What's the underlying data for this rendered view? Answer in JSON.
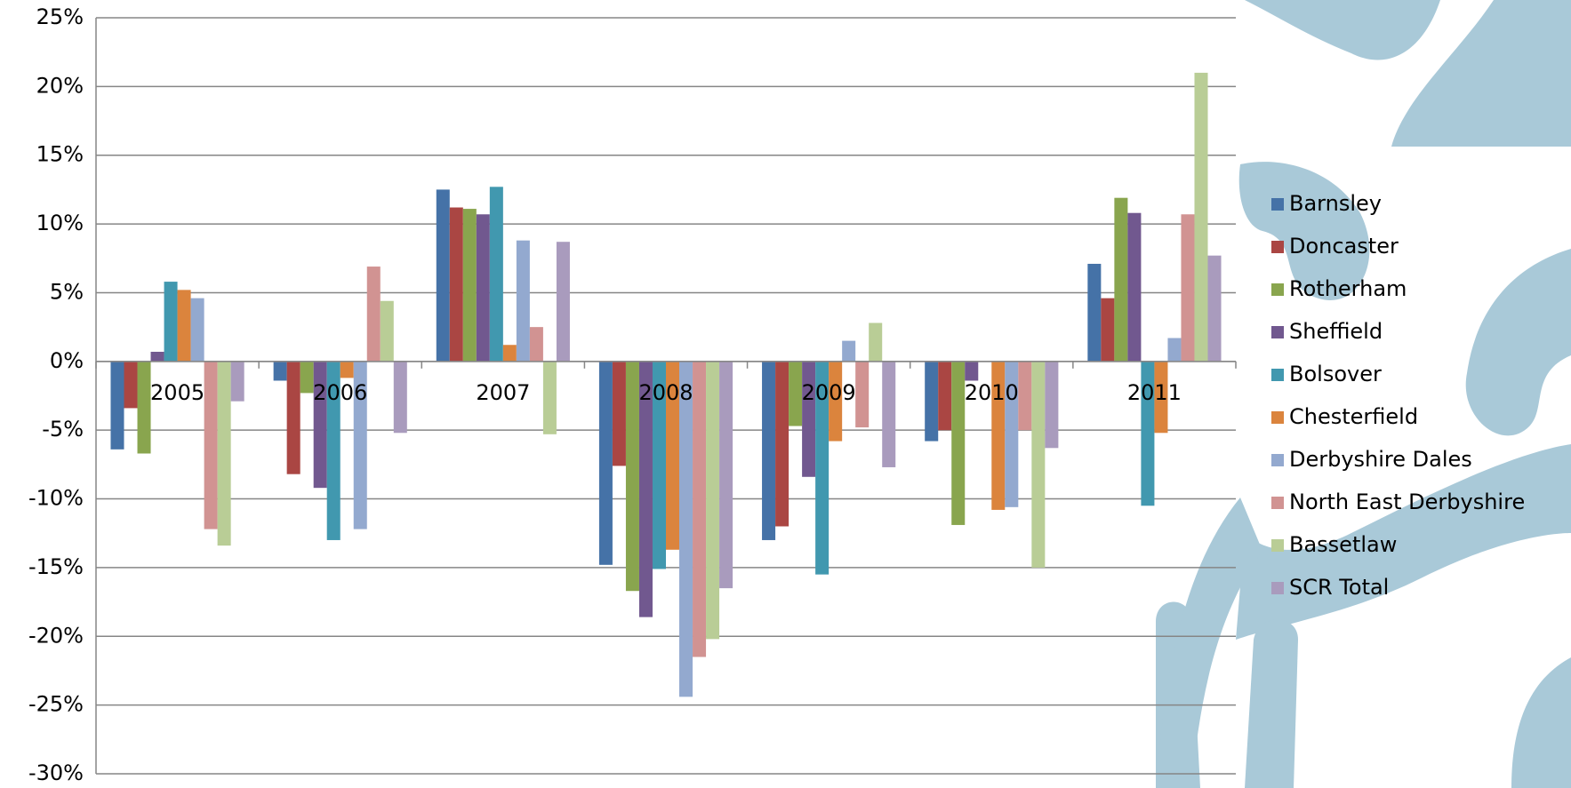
{
  "chart_data": {
    "type": "bar",
    "categories": [
      "2005",
      "2006",
      "2007",
      "2008",
      "2009",
      "2010",
      "2011"
    ],
    "series": [
      {
        "name": "Barnsley",
        "color": "#4572a7",
        "values": [
          -6.4,
          -1.4,
          12.5,
          -14.8,
          -13.0,
          -5.8,
          7.1
        ]
      },
      {
        "name": "Doncaster",
        "color": "#aa4643",
        "values": [
          -3.4,
          -8.2,
          11.2,
          -7.6,
          -12.0,
          -5.0,
          4.6
        ]
      },
      {
        "name": "Rotherham",
        "color": "#89a54e",
        "values": [
          -6.7,
          -2.3,
          11.1,
          -16.7,
          -4.7,
          -11.9,
          11.9
        ]
      },
      {
        "name": "Sheffield",
        "color": "#71588f",
        "values": [
          0.7,
          -9.2,
          10.7,
          -18.6,
          -8.4,
          -1.4,
          10.8
        ]
      },
      {
        "name": "Bolsover",
        "color": "#4198af",
        "values": [
          5.8,
          -13.0,
          12.7,
          -15.1,
          -15.5,
          0,
          -10.5
        ]
      },
      {
        "name": "Chesterfield",
        "color": "#db843d",
        "values": [
          5.2,
          -1.2,
          1.2,
          -13.7,
          -5.8,
          -10.8,
          -5.2
        ]
      },
      {
        "name": "Derbyshire Dales",
        "color": "#93a9cf",
        "values": [
          4.6,
          -12.2,
          8.8,
          -24.4,
          1.5,
          -10.6,
          1.7
        ]
      },
      {
        "name": "North East Derbyshire",
        "color": "#d19392",
        "values": [
          -12.2,
          6.9,
          2.5,
          -21.5,
          -4.8,
          -5.0,
          10.7
        ]
      },
      {
        "name": "Bassetlaw",
        "color": "#b9cd96",
        "values": [
          -13.4,
          4.4,
          -5.3,
          -20.2,
          2.8,
          -15.0,
          21.0
        ]
      },
      {
        "name": "SCR Total",
        "color": "#a99bbd",
        "values": [
          -2.9,
          -5.2,
          8.7,
          -16.5,
          -7.7,
          -6.3,
          7.7
        ]
      }
    ],
    "ylim": [
      -30,
      25
    ],
    "yticks": [
      {
        "value": -30,
        "label": "-30%"
      },
      {
        "value": -25,
        "label": "-25%"
      },
      {
        "value": -20,
        "label": "-20%"
      },
      {
        "value": -15,
        "label": "-15%"
      },
      {
        "value": -10,
        "label": "-10%"
      },
      {
        "value": -5,
        "label": "-5%"
      },
      {
        "value": 0,
        "label": "0%"
      },
      {
        "value": 5,
        "label": "5%"
      },
      {
        "value": 10,
        "label": "10%"
      },
      {
        "value": 15,
        "label": "15%"
      },
      {
        "value": 20,
        "label": "20%"
      },
      {
        "value": 25,
        "label": "25%"
      }
    ],
    "grid": true,
    "legend": "right"
  }
}
